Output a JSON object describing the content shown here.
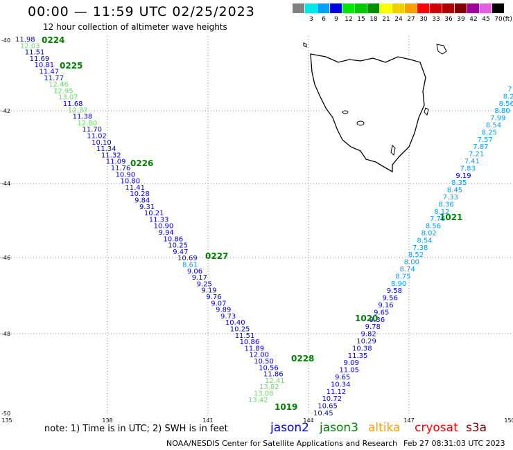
{
  "title": "00:00 — 11:59 UTC 02/25/2023",
  "subtitle": "12 hour collection of altimeter wave heights",
  "legend": {
    "swatches": [
      {
        "label": "",
        "color": "#808080"
      },
      {
        "label": "3",
        "color": "#00e8e8"
      },
      {
        "label": "6",
        "color": "#00a0ff"
      },
      {
        "label": "9",
        "color": "#0000e0"
      },
      {
        "label": "12",
        "color": "#00e800"
      },
      {
        "label": "15",
        "color": "#00c800"
      },
      {
        "label": "18",
        "color": "#009000"
      },
      {
        "label": "21",
        "color": "#ffff00"
      },
      {
        "label": "24",
        "color": "#f0d000"
      },
      {
        "label": "27",
        "color": "#ffa000"
      },
      {
        "label": "30",
        "color": "#ff0000"
      },
      {
        "label": "33",
        "color": "#d00000"
      },
      {
        "label": "36",
        "color": "#b00000"
      },
      {
        "label": "39",
        "color": "#800000"
      },
      {
        "label": "42",
        "color": "#a000a0"
      },
      {
        "label": "45",
        "color": "#e060e0"
      },
      {
        "label": "70",
        "color": "#000000"
      }
    ],
    "unit": "(ft)"
  },
  "lat_labels": [
    "-40",
    "-42",
    "-44",
    "-46",
    "-48",
    "-50"
  ],
  "lon_labels": [
    "135",
    "138",
    "141",
    "144",
    "147",
    "150"
  ],
  "track_west": {
    "values": [
      {
        "v": "11.98",
        "c": "#0000e0"
      },
      {
        "v": "12.03",
        "c": "#66dd66"
      },
      {
        "v": "11.51",
        "c": "#0000e0"
      },
      {
        "v": "11.69",
        "c": "#0000e0"
      },
      {
        "v": "10.81",
        "c": "#0000e0"
      },
      {
        "v": "11.47",
        "c": "#0000e0"
      },
      {
        "v": "11.77",
        "c": "#0000e0"
      },
      {
        "v": "12.46",
        "c": "#66dd66"
      },
      {
        "v": "12.95",
        "c": "#66dd66"
      },
      {
        "v": "13.07",
        "c": "#66dd66"
      },
      {
        "v": "11.68",
        "c": "#0000e0"
      },
      {
        "v": "12.37",
        "c": "#66dd66"
      },
      {
        "v": "11.38",
        "c": "#0000e0"
      },
      {
        "v": "12.80",
        "c": "#66dd66"
      },
      {
        "v": "11.70",
        "c": "#0000e0"
      },
      {
        "v": "11.02",
        "c": "#0000e0"
      },
      {
        "v": "10.10",
        "c": "#0000e0"
      },
      {
        "v": "11.34",
        "c": "#0000e0"
      },
      {
        "v": "11.32",
        "c": "#0000e0"
      },
      {
        "v": "11.09",
        "c": "#0000e0"
      },
      {
        "v": "11.76",
        "c": "#0000e0"
      },
      {
        "v": "10.90",
        "c": "#0000e0"
      },
      {
        "v": "10.80",
        "c": "#0000e0"
      },
      {
        "v": "11.41",
        "c": "#0000e0"
      },
      {
        "v": "10.28",
        "c": "#0000e0"
      },
      {
        "v": "9.84",
        "c": "#0000e0"
      },
      {
        "v": "9.31",
        "c": "#0000e0"
      },
      {
        "v": "10.21",
        "c": "#0000e0"
      },
      {
        "v": "11.33",
        "c": "#0000e0"
      },
      {
        "v": "10.90",
        "c": "#0000e0"
      },
      {
        "v": "9.94",
        "c": "#0000e0"
      },
      {
        "v": "10.86",
        "c": "#0000e0"
      },
      {
        "v": "10.25",
        "c": "#0000e0"
      },
      {
        "v": "9.47",
        "c": "#0000e0"
      },
      {
        "v": "10.69",
        "c": "#0000e0"
      },
      {
        "v": "8.61",
        "c": "#00a0ff"
      },
      {
        "v": "9.06",
        "c": "#0000e0"
      },
      {
        "v": "9.17",
        "c": "#0000e0"
      },
      {
        "v": "9.25",
        "c": "#0000e0"
      },
      {
        "v": "9.19",
        "c": "#0000e0"
      },
      {
        "v": "9.76",
        "c": "#0000e0"
      },
      {
        "v": "9.07",
        "c": "#0000e0"
      },
      {
        "v": "9.89",
        "c": "#0000e0"
      },
      {
        "v": "9.73",
        "c": "#0000e0"
      },
      {
        "v": "10.40",
        "c": "#0000e0"
      },
      {
        "v": "10.25",
        "c": "#0000e0"
      },
      {
        "v": "11.51",
        "c": "#0000e0"
      },
      {
        "v": "10.86",
        "c": "#0000e0"
      },
      {
        "v": "11.89",
        "c": "#0000e0"
      },
      {
        "v": "12.00",
        "c": "#0000e0"
      },
      {
        "v": "10.50",
        "c": "#0000e0"
      },
      {
        "v": "10.56",
        "c": "#0000e0"
      },
      {
        "v": "11.86",
        "c": "#0000e0"
      },
      {
        "v": "12.41",
        "c": "#66dd66"
      },
      {
        "v": "13.82",
        "c": "#66dd66"
      },
      {
        "v": "13.08",
        "c": "#66dd66"
      },
      {
        "v": "13.42",
        "c": "#66dd66"
      }
    ],
    "day_labels": [
      "0224",
      "0225",
      "0226",
      "0227",
      "1019"
    ]
  },
  "track_east": {
    "values": [
      {
        "v": "10.45",
        "c": "#0000e0"
      },
      {
        "v": "10.65",
        "c": "#0000e0"
      },
      {
        "v": "10.72",
        "c": "#0000e0"
      },
      {
        "v": "11.12",
        "c": "#0000e0"
      },
      {
        "v": "10.34",
        "c": "#0000e0"
      },
      {
        "v": "9.65",
        "c": "#0000e0"
      },
      {
        "v": "11.05",
        "c": "#0000e0"
      },
      {
        "v": "9.09",
        "c": "#0000e0"
      },
      {
        "v": "11.35",
        "c": "#0000e0"
      },
      {
        "v": "10.38",
        "c": "#0000e0"
      },
      {
        "v": "10.29",
        "c": "#0000e0"
      },
      {
        "v": "9.82",
        "c": "#0000e0"
      },
      {
        "v": "9.78",
        "c": "#0000e0"
      },
      {
        "v": "9.36",
        "c": "#0000e0"
      },
      {
        "v": "9.65",
        "c": "#0000e0"
      },
      {
        "v": "9.16",
        "c": "#0000e0"
      },
      {
        "v": "9.56",
        "c": "#0000e0"
      },
      {
        "v": "9.58",
        "c": "#0000e0"
      },
      {
        "v": "8.90",
        "c": "#00a0ff"
      },
      {
        "v": "8.75",
        "c": "#00a0ff"
      },
      {
        "v": "8.74",
        "c": "#00a0ff"
      },
      {
        "v": "8.00",
        "c": "#00a0ff"
      },
      {
        "v": "8.52",
        "c": "#00a0ff"
      },
      {
        "v": "7.38",
        "c": "#00a0ff"
      },
      {
        "v": "8.54",
        "c": "#00a0ff"
      },
      {
        "v": "8.02",
        "c": "#00a0ff"
      },
      {
        "v": "8.56",
        "c": "#00a0ff"
      },
      {
        "v": "7.76",
        "c": "#00a0ff"
      },
      {
        "v": "8.12",
        "c": "#00a0ff"
      },
      {
        "v": "8.36",
        "c": "#00a0ff"
      },
      {
        "v": "7.33",
        "c": "#00a0ff"
      },
      {
        "v": "8.45",
        "c": "#00a0ff"
      },
      {
        "v": "8.35",
        "c": "#00a0ff"
      },
      {
        "v": "9.19",
        "c": "#0000e0"
      },
      {
        "v": "7.83",
        "c": "#00a0ff"
      },
      {
        "v": "7.41",
        "c": "#00a0ff"
      },
      {
        "v": "7.21",
        "c": "#00a0ff"
      },
      {
        "v": "7.87",
        "c": "#00a0ff"
      },
      {
        "v": "7.57",
        "c": "#00a0ff"
      },
      {
        "v": "8.25",
        "c": "#00a0ff"
      },
      {
        "v": "8.54",
        "c": "#00a0ff"
      },
      {
        "v": "7.99",
        "c": "#00a0ff"
      },
      {
        "v": "8.80",
        "c": "#00a0ff"
      },
      {
        "v": "8.56",
        "c": "#00a0ff"
      },
      {
        "v": "8.2",
        "c": "#00a0ff"
      },
      {
        "v": "7",
        "c": "#00a0ff"
      }
    ],
    "day_labels": [
      "1020",
      "1021",
      "0228"
    ]
  },
  "note": "note: 1) Time is in UTC; 2) SWH is in feet",
  "satellites": [
    {
      "name": "jason2",
      "color": "#0000e0"
    },
    {
      "name": "jason3",
      "color": "#008000"
    },
    {
      "name": "altika",
      "color": "#ffa000"
    },
    {
      "name": "cryosat",
      "color": "#ff0000"
    },
    {
      "name": "s3a",
      "color": "#800000"
    }
  ],
  "footer": "NOAA/NESDIS Center for Satellite Applications and Research",
  "footer_time": "Feb 27 08:31:03 UTC 2023"
}
